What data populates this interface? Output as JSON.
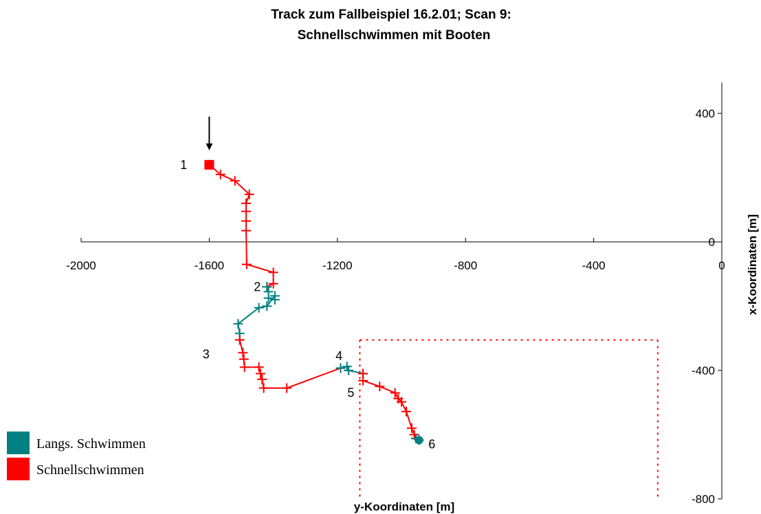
{
  "chart_data": {
    "type": "line",
    "title_line1": "Track zum Fallbeispiel 16.2.01; Scan 9:",
    "title_line2": "Schnellschwimmen mit Booten",
    "xlabel": "y-Koordinaten [m]",
    "ylabel": "x-Koordinaten [m]",
    "xlim": [
      -2000,
      0
    ],
    "ylim": [
      -800,
      400
    ],
    "xticks": [
      "-2000",
      "-1600",
      "-1200",
      "-800",
      "-400",
      "0"
    ],
    "xtick_values": [
      -2000,
      -1600,
      -1200,
      -800,
      -400,
      0
    ],
    "yticks": [
      "400",
      "0",
      "-400",
      "-800"
    ],
    "ytick_values": [
      400,
      0,
      -400,
      -800
    ],
    "colors": {
      "Langs. Schwimmen": "#008080",
      "Schnellschwimmen": "#ff0000",
      "box": "#ff0000",
      "axis": "#000000"
    },
    "legend": [
      {
        "name": "Langs. Schwimmen",
        "color": "#008080"
      },
      {
        "name": "Schnellschwimmen",
        "color": "#ff0000"
      }
    ],
    "legend_placement": "bottom-left",
    "segments": [
      {
        "series": "Schnellschwimmen",
        "points": [
          [
            -1600,
            240
          ],
          [
            -1565,
            210
          ],
          [
            -1520,
            190
          ],
          [
            -1475,
            148
          ],
          [
            -1485,
            120
          ],
          [
            -1485,
            95
          ],
          [
            -1485,
            65
          ],
          [
            -1485,
            35
          ],
          [
            -1483,
            -70
          ],
          [
            -1400,
            -95
          ],
          [
            -1400,
            -130
          ],
          [
            -1420,
            -140
          ]
        ]
      },
      {
        "series": "Langs. Schwimmen",
        "points": [
          [
            -1420,
            -140
          ],
          [
            -1415,
            -155
          ],
          [
            -1415,
            -175
          ],
          [
            -1395,
            -180
          ],
          [
            -1395,
            -168
          ],
          [
            -1420,
            -200
          ],
          [
            -1445,
            -205
          ],
          [
            -1510,
            -255
          ],
          [
            -1505,
            -285
          ],
          [
            -1505,
            -305
          ]
        ]
      },
      {
        "series": "Schnellschwimmen",
        "points": [
          [
            -1505,
            -305
          ],
          [
            -1495,
            -345
          ],
          [
            -1492,
            -365
          ],
          [
            -1490,
            -390
          ],
          [
            -1445,
            -390
          ],
          [
            -1440,
            -410
          ],
          [
            -1435,
            -428
          ],
          [
            -1430,
            -455
          ],
          [
            -1358,
            -455
          ],
          [
            -1190,
            -393
          ]
        ]
      },
      {
        "series": "Langs. Schwimmen",
        "points": [
          [
            -1190,
            -393
          ],
          [
            -1170,
            -388
          ],
          [
            -1165,
            -400
          ],
          [
            -1120,
            -410
          ]
        ]
      },
      {
        "series": "Schnellschwimmen",
        "points": [
          [
            -1120,
            -410
          ],
          [
            -1120,
            -432
          ],
          [
            -1068,
            -450
          ],
          [
            -1020,
            -470
          ],
          [
            -1010,
            -488
          ],
          [
            -1000,
            -498
          ],
          [
            -985,
            -528
          ],
          [
            -968,
            -580
          ],
          [
            -960,
            -600
          ],
          [
            -955,
            -612
          ]
        ]
      },
      {
        "series": "Langs. Schwimmen",
        "points": [
          [
            -955,
            -612
          ],
          [
            -945,
            -617
          ]
        ]
      }
    ],
    "start_point": {
      "x": -1600,
      "y": 240
    },
    "end_point": {
      "x": -945,
      "y": -617
    },
    "arrow": {
      "x": -1600,
      "y_from": 390,
      "y_to": 285
    },
    "box": {
      "x": [
        -1130,
        -200
      ],
      "y": [
        -305,
        -800
      ]
    },
    "point_labels": [
      {
        "text": "1",
        "x": -1680,
        "y": 240
      },
      {
        "text": "2",
        "x": -1450,
        "y": -140
      },
      {
        "text": "3",
        "x": -1610,
        "y": -350
      },
      {
        "text": "4",
        "x": -1195,
        "y": -355
      },
      {
        "text": "5",
        "x": -1158,
        "y": -470
      },
      {
        "text": "6",
        "x": -905,
        "y": -630
      }
    ]
  }
}
